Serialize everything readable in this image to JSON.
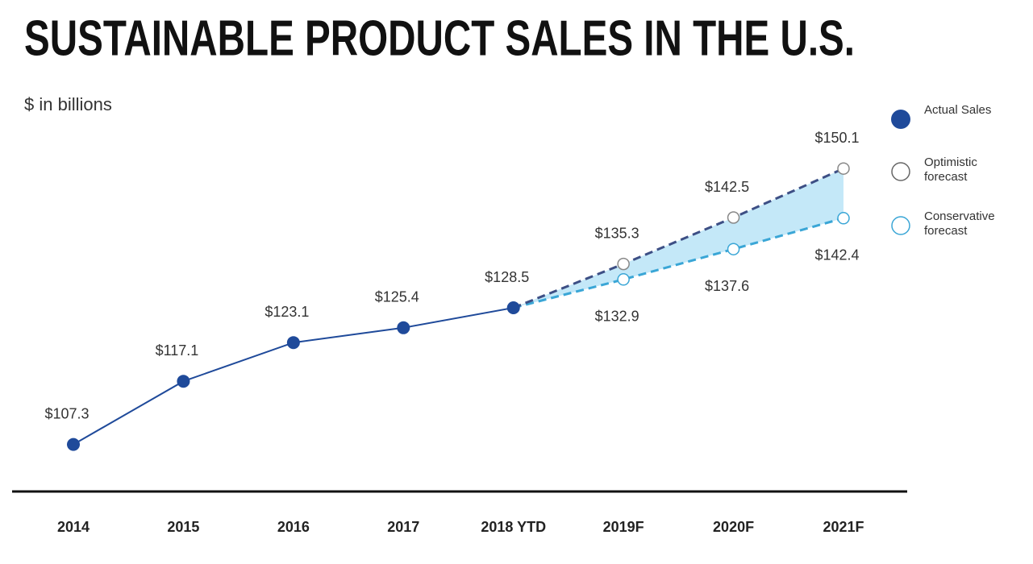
{
  "chart_data": {
    "type": "line",
    "title": "SUSTAINABLE PRODUCT SALES IN THE U.S.",
    "subtitle": "$ in billions",
    "categories": [
      "2014",
      "2015",
      "2016",
      "2017",
      "2018 YTD",
      "2019F",
      "2020F",
      "2021F"
    ],
    "ylim": [
      100,
      155
    ],
    "series": [
      {
        "name": "Actual Sales",
        "color": "#1f4a9a",
        "dashed": false,
        "values": [
          107.3,
          117.1,
          123.1,
          125.4,
          128.5,
          null,
          null,
          null
        ],
        "value_labels": [
          "$107.3",
          "$117.1",
          "$123.1",
          "$125.4",
          "$128.5",
          null,
          null,
          null
        ]
      },
      {
        "name": "Optimistic forecast",
        "color": "#3d4f85",
        "dashed": true,
        "values": [
          null,
          null,
          null,
          null,
          128.5,
          135.3,
          142.5,
          150.1
        ],
        "value_labels": [
          null,
          null,
          null,
          null,
          null,
          "$135.3",
          "$142.5",
          "$150.1"
        ]
      },
      {
        "name": "Conservative forecast",
        "color": "#3aa6d6",
        "dashed": true,
        "values": [
          null,
          null,
          null,
          null,
          128.5,
          132.9,
          137.6,
          142.4
        ],
        "value_labels": [
          null,
          null,
          null,
          null,
          null,
          "$132.9",
          "$137.6",
          "$142.4"
        ]
      }
    ],
    "band_color": "#c4e8f8",
    "legend": "right"
  }
}
